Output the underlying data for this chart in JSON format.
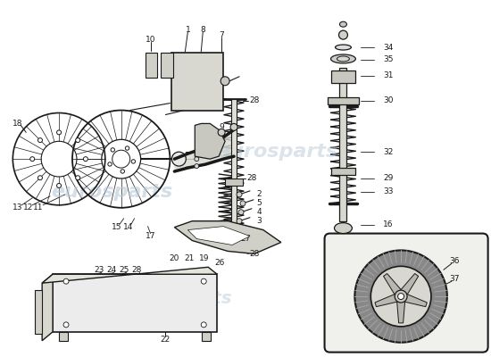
{
  "bg_color": "#ffffff",
  "line_color": "#1a1a1a",
  "watermark_color": "#b8c8d8",
  "watermark_text": "eurosparts",
  "figsize": [
    5.5,
    4.0
  ],
  "dpi": 100
}
